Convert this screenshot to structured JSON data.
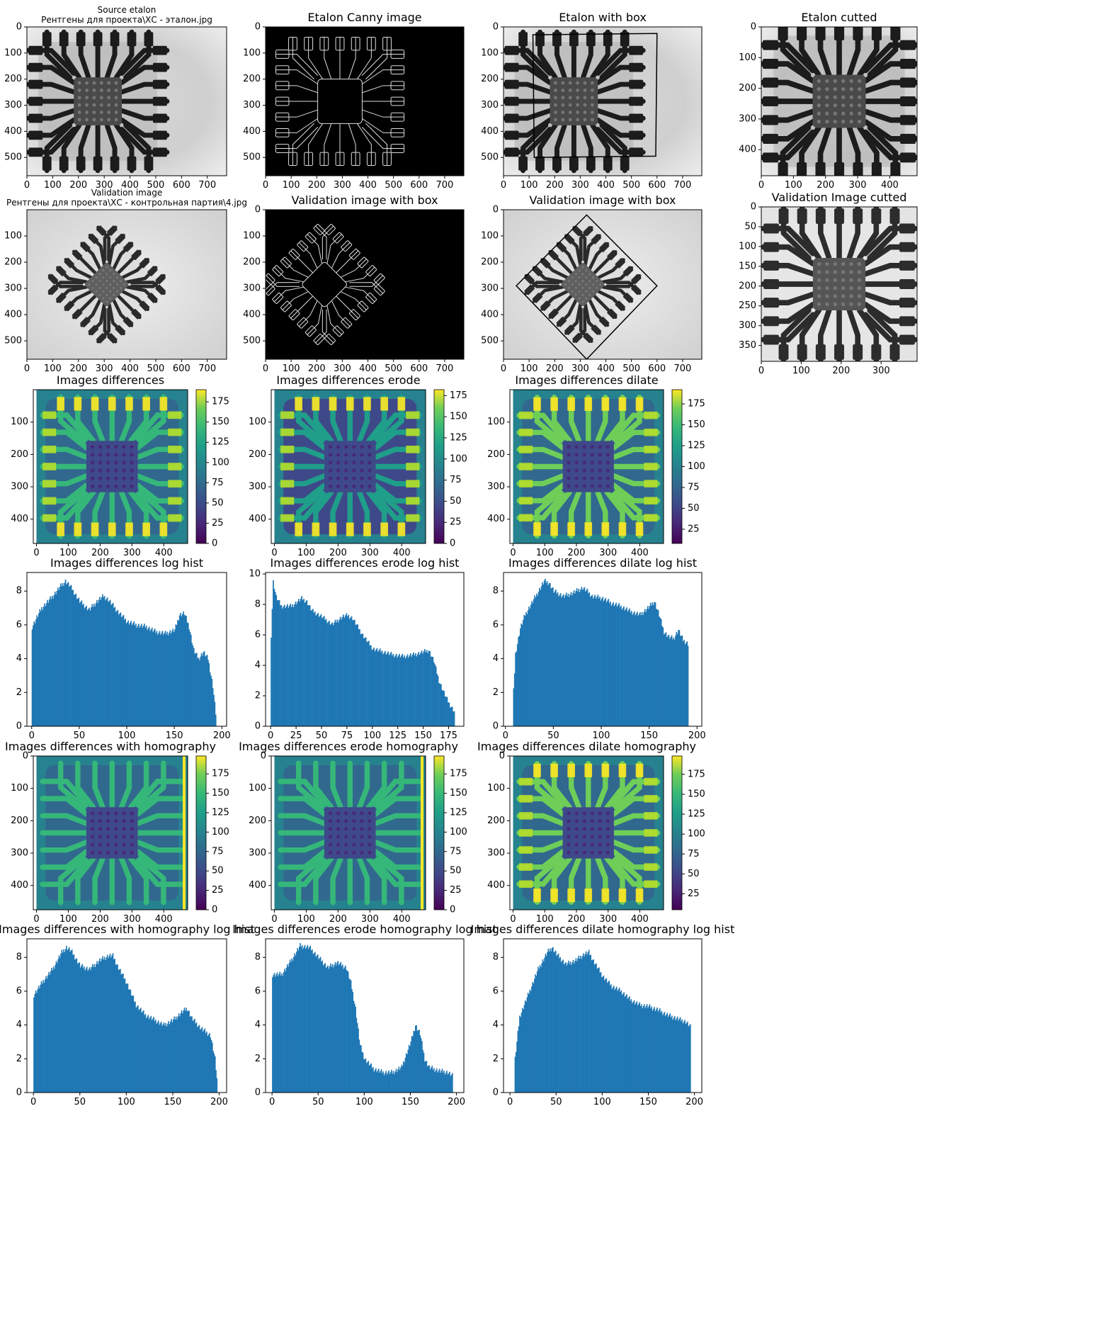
{
  "figure": {
    "panels": [
      {
        "kind": "image",
        "image": "xray-etalon",
        "title_lines": [
          "Source etalon",
          "Рентгены для проекта\\ХС - эталон.jpg"
        ],
        "xticks": [
          0,
          100,
          200,
          300,
          400,
          500,
          600,
          700
        ],
        "yticks": [
          0,
          100,
          200,
          300,
          400,
          500
        ]
      },
      {
        "kind": "image",
        "image": "canny-etalon",
        "title_lines": [
          "Etalon Canny image"
        ],
        "xticks": [
          0,
          100,
          200,
          300,
          400,
          500,
          600,
          700
        ],
        "yticks": [
          0,
          100,
          200,
          300,
          400,
          500
        ]
      },
      {
        "kind": "image",
        "image": "xray-etalon-box",
        "title_lines": [
          "Etalon with box"
        ],
        "xticks": [
          0,
          100,
          200,
          300,
          400,
          500,
          600,
          700
        ],
        "yticks": [
          0,
          100,
          200,
          300,
          400,
          500
        ]
      },
      {
        "kind": "image",
        "image": "xray-etalon-cut",
        "title_lines": [
          "Etalon cutted"
        ],
        "xticks": [
          0,
          100,
          200,
          300,
          400
        ],
        "yticks": [
          0,
          100,
          200,
          300,
          400
        ]
      },
      {
        "kind": "image",
        "image": "xray-valid",
        "title_lines": [
          "Validation image",
          "Рентгены для проекта\\ХС - контрольная партия\\4.jpg"
        ],
        "xticks": [
          0,
          100,
          200,
          300,
          400,
          500,
          600,
          700
        ],
        "yticks": [
          100,
          200,
          300,
          400,
          500
        ]
      },
      {
        "kind": "image",
        "image": "canny-valid",
        "title_lines": [
          "Validation image with box"
        ],
        "xticks": [
          0,
          100,
          200,
          300,
          400,
          500,
          600,
          700
        ],
        "yticks": [
          0,
          100,
          200,
          300,
          400,
          500
        ]
      },
      {
        "kind": "image",
        "image": "xray-valid-box",
        "title_lines": [
          "Validation image with box"
        ],
        "xticks": [
          0,
          100,
          200,
          300,
          400,
          500,
          600,
          700
        ],
        "yticks": [
          0,
          100,
          200,
          300,
          400,
          500
        ]
      },
      {
        "kind": "image",
        "image": "xray-valid-cut",
        "title_lines": [
          "Validation Image cutted"
        ],
        "xticks": [
          0,
          100,
          200,
          300
        ],
        "yticks": [
          0,
          50,
          100,
          150,
          200,
          250,
          300,
          350
        ]
      },
      {
        "kind": "heat",
        "title_lines": [
          "Images differences"
        ],
        "xticks": [
          0,
          100,
          200,
          300,
          400
        ],
        "yticks": [
          100,
          200,
          300,
          400
        ],
        "cticks": [
          0,
          25,
          50,
          75,
          100,
          125,
          150,
          175
        ],
        "crange": [
          0,
          190
        ]
      },
      {
        "kind": "heat",
        "title_lines": [
          "Images differences erode"
        ],
        "xticks": [
          0,
          100,
          200,
          300,
          400
        ],
        "yticks": [
          100,
          200,
          300,
          400
        ],
        "cticks": [
          0,
          25,
          50,
          75,
          100,
          125,
          150,
          175
        ],
        "crange": [
          0,
          182
        ]
      },
      {
        "kind": "heat",
        "title_lines": [
          "Images differences dilate"
        ],
        "xticks": [
          0,
          100,
          200,
          300,
          400
        ],
        "yticks": [
          100,
          200,
          300,
          400
        ],
        "cticks": [
          25,
          50,
          75,
          100,
          125,
          150,
          175
        ],
        "crange": [
          8,
          192
        ]
      },
      {
        "kind": "hist",
        "title_lines": [
          "Images differences log hist"
        ],
        "xticks": [
          0,
          50,
          100,
          150,
          200
        ],
        "yticks": [
          0,
          2,
          4,
          6,
          8
        ]
      },
      {
        "kind": "hist",
        "title_lines": [
          "Images differences erode log hist"
        ],
        "xticks": [
          0,
          25,
          50,
          75,
          100,
          125,
          150,
          175
        ],
        "yticks": [
          0,
          2,
          4,
          6,
          8,
          10
        ]
      },
      {
        "kind": "hist",
        "title_lines": [
          "Images differences dilate log hist"
        ],
        "xticks": [
          0,
          50,
          100,
          150,
          200
        ],
        "yticks": [
          0,
          2,
          4,
          6,
          8
        ]
      },
      {
        "kind": "heat",
        "title_lines": [
          "Images differences with homography"
        ],
        "xticks": [
          0,
          100,
          200,
          300,
          400
        ],
        "yticks": [
          0,
          100,
          200,
          300,
          400
        ],
        "cticks": [
          0,
          25,
          50,
          75,
          100,
          125,
          150,
          175
        ],
        "crange": [
          0,
          198
        ]
      },
      {
        "kind": "heat",
        "title_lines": [
          "Images differences erode homography"
        ],
        "xticks": [
          0,
          100,
          200,
          300,
          400
        ],
        "yticks": [
          0,
          100,
          200,
          300,
          400
        ],
        "cticks": [
          0,
          25,
          50,
          75,
          100,
          125,
          150,
          175
        ],
        "crange": [
          0,
          198
        ]
      },
      {
        "kind": "heat",
        "title_lines": [
          "Images differences dilate homography"
        ],
        "xticks": [
          0,
          100,
          200,
          300,
          400
        ],
        "yticks": [
          0,
          100,
          200,
          300,
          400
        ],
        "cticks": [
          25,
          50,
          75,
          100,
          125,
          150,
          175
        ],
        "crange": [
          5,
          198
        ]
      },
      {
        "kind": "hist",
        "title_lines": [
          "Images differences with homography log hist"
        ],
        "xticks": [
          0,
          50,
          100,
          150,
          200
        ],
        "yticks": [
          0,
          2,
          4,
          6,
          8
        ]
      },
      {
        "kind": "hist",
        "title_lines": [
          "Images differences erode homography log hist"
        ],
        "xticks": [
          0,
          50,
          100,
          150,
          200
        ],
        "yticks": [
          0,
          2,
          4,
          6,
          8
        ]
      },
      {
        "kind": "hist",
        "title_lines": [
          "Images differences dilate homography log hist"
        ],
        "xticks": [
          0,
          50,
          100,
          150,
          200
        ],
        "yticks": [
          0,
          2,
          4,
          6,
          8
        ]
      }
    ]
  },
  "colors": {
    "bar": "#1f77b4",
    "axis": "#000000",
    "background": "#ffffff"
  },
  "chart_data": [
    {
      "type": "heatmap",
      "title": "Images differences",
      "xlim": [
        0,
        475
      ],
      "ylim": [
        475,
        0
      ],
      "colorbar": [
        0,
        190
      ]
    },
    {
      "type": "heatmap",
      "title": "Images differences erode",
      "xlim": [
        0,
        475
      ],
      "ylim": [
        475,
        0
      ],
      "colorbar": [
        0,
        182
      ]
    },
    {
      "type": "heatmap",
      "title": "Images differences dilate",
      "xlim": [
        0,
        475
      ],
      "ylim": [
        475,
        0
      ],
      "colorbar": [
        8,
        192
      ]
    },
    {
      "type": "bar",
      "title": "Images differences log hist",
      "xlim": [
        -5,
        205
      ],
      "ylim": [
        0,
        9.1
      ],
      "x": [
        0,
        10,
        20,
        30,
        35,
        40,
        50,
        60,
        70,
        75,
        80,
        90,
        100,
        110,
        120,
        130,
        140,
        150,
        155,
        160,
        165,
        170,
        175,
        180,
        185,
        190,
        193
      ],
      "values": [
        5.9,
        7.0,
        7.6,
        8.3,
        8.6,
        8.3,
        7.4,
        6.9,
        7.5,
        7.7,
        7.5,
        6.8,
        6.2,
        6.0,
        5.9,
        5.6,
        5.5,
        5.7,
        6.6,
        6.7,
        5.9,
        4.5,
        4.0,
        4.4,
        4.0,
        2.4,
        0.8
      ]
    },
    {
      "type": "bar",
      "title": "Images differences erode log hist",
      "xlim": [
        -5,
        190
      ],
      "ylim": [
        0,
        10.1
      ],
      "x": [
        0,
        2,
        5,
        10,
        20,
        30,
        35,
        40,
        50,
        60,
        70,
        75,
        80,
        90,
        100,
        110,
        120,
        130,
        140,
        150,
        155,
        160,
        165,
        170,
        175,
        180
      ],
      "values": [
        6.0,
        9.5,
        8.5,
        7.9,
        7.9,
        8.4,
        8.2,
        7.6,
        7.2,
        6.7,
        7.2,
        7.3,
        7.1,
        6.0,
        5.1,
        4.9,
        4.7,
        4.6,
        4.7,
        4.9,
        5.0,
        4.3,
        3.0,
        2.2,
        1.5,
        1.0
      ]
    },
    {
      "type": "bar",
      "title": "Images differences dilate log hist",
      "xlim": [
        -2,
        205
      ],
      "ylim": [
        0,
        9.1
      ],
      "x": [
        8,
        10,
        15,
        20,
        30,
        40,
        45,
        50,
        60,
        70,
        80,
        85,
        90,
        100,
        110,
        120,
        130,
        140,
        150,
        155,
        160,
        165,
        170,
        175,
        180,
        185,
        190
      ],
      "values": [
        2.1,
        4.3,
        5.8,
        6.6,
        7.6,
        8.6,
        8.5,
        8.0,
        7.7,
        7.9,
        8.2,
        8.0,
        7.7,
        7.6,
        7.3,
        7.1,
        6.8,
        6.6,
        7.1,
        7.4,
        6.6,
        5.6,
        5.3,
        5.2,
        5.7,
        5.1,
        4.9
      ]
    },
    {
      "type": "heatmap",
      "title": "Images differences with homography",
      "xlim": [
        0,
        475
      ],
      "ylim": [
        475,
        0
      ],
      "colorbar": [
        0,
        198
      ]
    },
    {
      "type": "heatmap",
      "title": "Images differences erode homography",
      "xlim": [
        0,
        475
      ],
      "ylim": [
        475,
        0
      ],
      "colorbar": [
        0,
        198
      ]
    },
    {
      "type": "heatmap",
      "title": "Images differences dilate homography",
      "xlim": [
        0,
        475
      ],
      "ylim": [
        475,
        0
      ],
      "colorbar": [
        5,
        198
      ]
    },
    {
      "type": "bar",
      "title": "Images differences with homography log hist",
      "xlim": [
        -7,
        208
      ],
      "ylim": [
        0,
        9.1
      ],
      "x": [
        0,
        10,
        20,
        30,
        35,
        40,
        50,
        60,
        70,
        80,
        85,
        90,
        100,
        110,
        120,
        130,
        140,
        150,
        160,
        165,
        170,
        180,
        185,
        190,
        195,
        197
      ],
      "values": [
        5.8,
        6.6,
        7.3,
        8.3,
        8.6,
        8.4,
        7.5,
        7.3,
        7.8,
        8.1,
        8.1,
        7.5,
        6.5,
        5.2,
        4.6,
        4.3,
        4.0,
        4.3,
        4.8,
        5.0,
        4.4,
        3.8,
        3.6,
        3.4,
        2.0,
        0.8
      ]
    },
    {
      "type": "bar",
      "title": "Images differences erode homography log hist",
      "xlim": [
        -7,
        208
      ],
      "ylim": [
        0,
        9.1
      ],
      "x": [
        0,
        10,
        20,
        30,
        40,
        50,
        60,
        70,
        80,
        85,
        90,
        95,
        100,
        110,
        120,
        130,
        140,
        150,
        155,
        160,
        165,
        170,
        180,
        190,
        195
      ],
      "values": [
        7.0,
        7.0,
        7.8,
        8.7,
        8.6,
        8.0,
        7.4,
        7.7,
        7.4,
        6.5,
        5.0,
        2.8,
        2.0,
        1.4,
        1.2,
        1.2,
        1.5,
        3.0,
        4.0,
        3.5,
        2.0,
        1.5,
        1.3,
        1.2,
        1.0
      ]
    },
    {
      "type": "bar",
      "title": "Images differences dilate homography log hist",
      "xlim": [
        -7,
        208
      ],
      "ylim": [
        0,
        9.1
      ],
      "x": [
        5,
        10,
        20,
        30,
        40,
        45,
        50,
        60,
        70,
        80,
        85,
        90,
        100,
        110,
        120,
        130,
        140,
        150,
        160,
        170,
        180,
        190,
        195
      ],
      "values": [
        2.0,
        4.5,
        5.9,
        7.3,
        8.3,
        8.6,
        8.2,
        7.6,
        7.8,
        8.2,
        8.3,
        7.8,
        6.9,
        6.3,
        6.0,
        5.5,
        5.2,
        5.1,
        4.9,
        4.6,
        4.4,
        4.2,
        3.9
      ]
    }
  ]
}
